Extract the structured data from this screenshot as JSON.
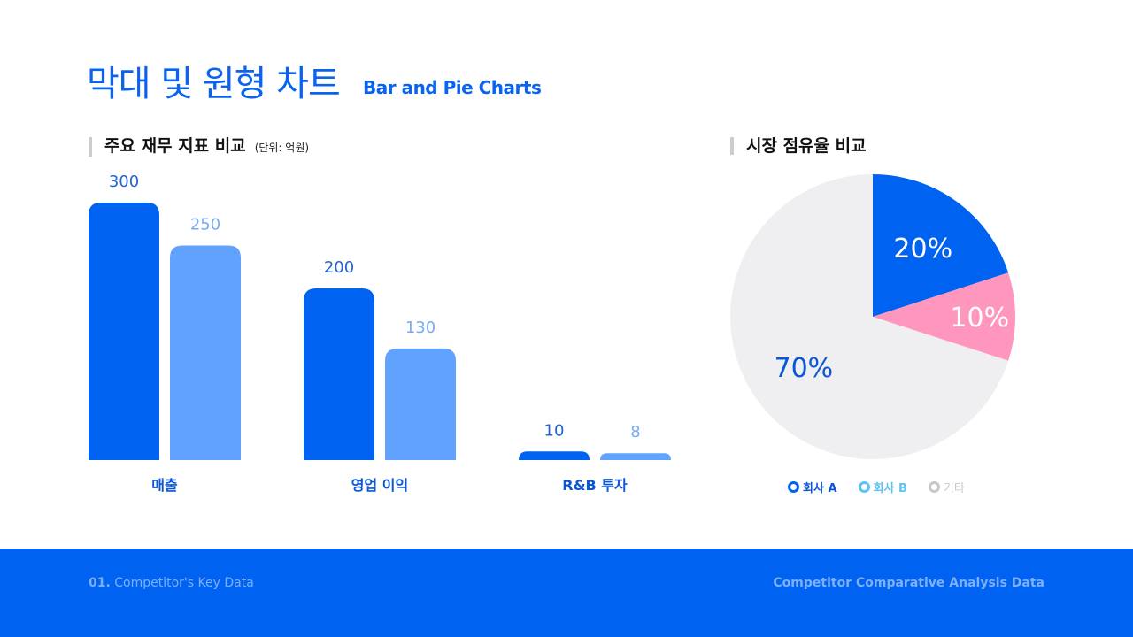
{
  "header": {
    "title": "막대 및 원형 차트",
    "subtitle": "Bar and Pie Charts"
  },
  "footer": {
    "left_num": "01.",
    "left_text": "Competitor's Key Data",
    "right_text": "Competitor Comparative Analysis Data"
  },
  "colors": {
    "company_a": "#0062f0",
    "company_b": "#62a2ff",
    "other": "#efeef1",
    "pie_b": "#ff96bd",
    "legend_b": "#5cc3f5",
    "legend_other": "#c8c8c8"
  },
  "chart_data": [
    {
      "type": "bar",
      "title": "주요 재무 지표 비교",
      "unit": "(단위: 억원)",
      "categories": [
        "매출",
        "영업 이익",
        "R&B 투자"
      ],
      "series": [
        {
          "values": [
            300,
            200,
            10
          ]
        },
        {
          "values": [
            250,
            130,
            8
          ]
        }
      ]
    },
    {
      "type": "pie",
      "title": "시장 점유율 비교",
      "slices": [
        {
          "label": "회사 A",
          "value": 20,
          "display": "20%"
        },
        {
          "label": "회사 B",
          "value": 10,
          "display": "10%"
        },
        {
          "label": "기타",
          "value": 70,
          "display": "70%"
        }
      ],
      "legend_placement": "bottom"
    }
  ]
}
